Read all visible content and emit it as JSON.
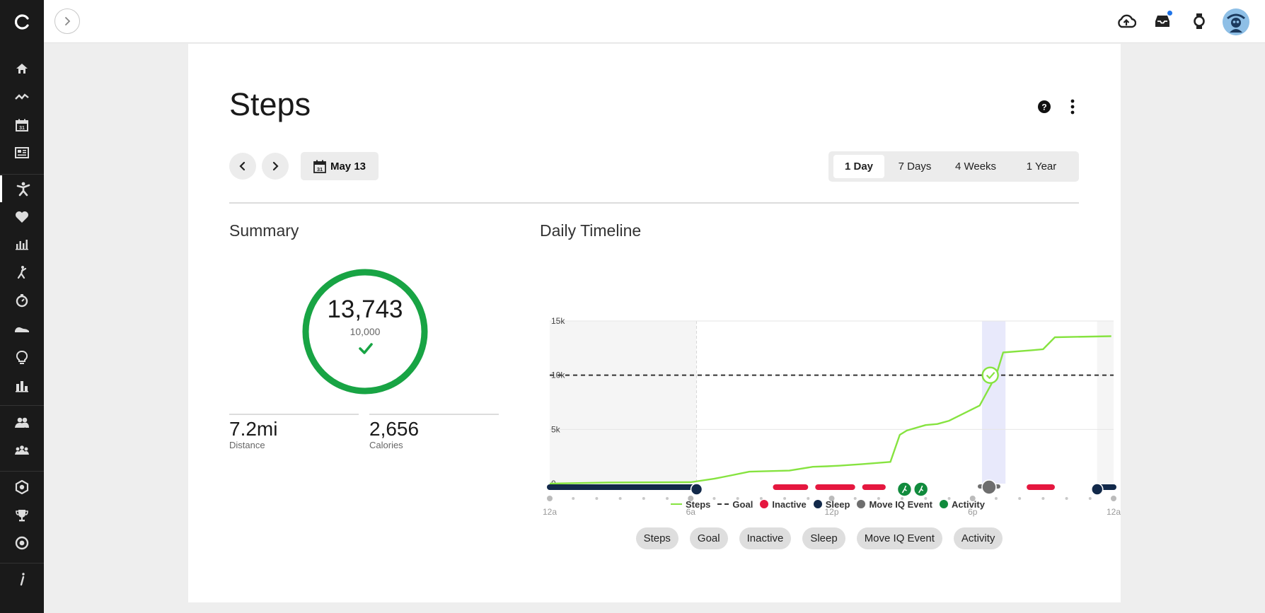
{
  "page": {
    "title": "Steps",
    "date_label": "May 13",
    "date_icon_day": "31",
    "ranges": [
      "1 Day",
      "7 Days",
      "4 Weeks",
      "1 Year"
    ],
    "active_range": "1 Day"
  },
  "summary": {
    "title": "Summary",
    "steps": "13,743",
    "goal": "10,000",
    "goal_progress": 1.0,
    "stats": [
      {
        "value": "7.2mi",
        "label": "Distance"
      },
      {
        "value": "2,656",
        "label": "Calories"
      }
    ]
  },
  "timeline": {
    "title": "Daily Timeline",
    "legend": [
      "Steps",
      "Goal",
      "Inactive",
      "Sleep",
      "Move IQ Event",
      "Activity"
    ],
    "filters": [
      "Steps",
      "Goal",
      "Inactive",
      "Sleep",
      "Move IQ Event",
      "Activity"
    ]
  },
  "colors": {
    "steps": "#86e340",
    "goal": "#333333",
    "inactive": "#e5173f",
    "sleep": "#12294a",
    "move_iq": "#6e6e6e",
    "activity": "#118b3d",
    "ring": "#18a444"
  },
  "icons": {
    "sidebar": [
      "home-icon",
      "insights-icon",
      "calendar-icon",
      "news-icon",
      "activities-icon",
      "health-icon",
      "stats-icon",
      "golf-icon",
      "timer-icon",
      "gear-icon",
      "insight-icon",
      "reports-icon",
      "connections-icon",
      "groups-icon",
      "badges-icon",
      "challenges-icon",
      "segments-icon",
      "info-icon"
    ],
    "topbar": [
      "expand-icon",
      "upload-icon",
      "inbox-icon",
      "watch-icon",
      "avatar"
    ]
  },
  "chart_data": {
    "type": "line",
    "title": "Daily Timeline",
    "x_ticks": [
      "12a",
      "6a",
      "12p",
      "6p",
      "12a"
    ],
    "y_ticks": [
      "0",
      "5k",
      "10k",
      "15k"
    ],
    "ylim": [
      0,
      15000
    ],
    "xlim_hours": [
      0,
      24
    ],
    "series": [
      {
        "name": "Steps",
        "x_hours": [
          0,
          2.5,
          6,
          7.0,
          7.7,
          8.5,
          10.2,
          11.2,
          11.8,
          12.3,
          13.3,
          14.5,
          14.9,
          15.2,
          16.0,
          16.5,
          17.0,
          18.3,
          19.0,
          19.3,
          20.5,
          21.0,
          21.5,
          23.9
        ],
        "y": [
          0,
          100,
          130,
          450,
          750,
          1100,
          1200,
          1550,
          1600,
          1650,
          1800,
          2000,
          4500,
          4900,
          5400,
          5500,
          5800,
          7200,
          10000,
          12100,
          12300,
          12400,
          13500,
          13600
        ]
      }
    ],
    "goal": 10000,
    "goal_reached_hour": 18.75,
    "sleep_periods_hours": [
      [
        0,
        6.25
      ],
      [
        23.3,
        24
      ]
    ],
    "inactive_periods_hours": [
      [
        9.5,
        11.0
      ],
      [
        11.3,
        13.0
      ],
      [
        13.3,
        14.3
      ],
      [
        20.3,
        21.5
      ]
    ],
    "move_iq_hours": [
      18.7
    ],
    "activity_hours": [
      15.1,
      15.8
    ],
    "highlight_hours": [
      18.4,
      19.4
    ],
    "legend_position": "bottom"
  }
}
